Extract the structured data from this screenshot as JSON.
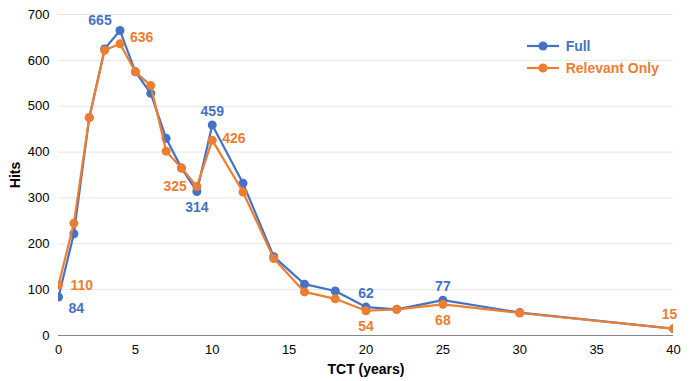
{
  "chart_data": {
    "type": "line",
    "x_label": "TCT (years)",
    "y_label": "Hits",
    "x": [
      0,
      1,
      2,
      3,
      4,
      5,
      6,
      7,
      8,
      9,
      10,
      12,
      14,
      16,
      18,
      20,
      22,
      25,
      30,
      40
    ],
    "series": [
      {
        "name": "Full",
        "color": "#4472c4",
        "marker": "circle",
        "values": [
          84,
          222,
          475,
          625,
          665,
          575,
          528,
          430,
          365,
          314,
          459,
          332,
          172,
          112,
          97,
          62,
          57,
          77,
          50,
          15
        ]
      },
      {
        "name": "Relevant Only",
        "color": "#ed7d31",
        "marker": "circle",
        "values": [
          110,
          245,
          475,
          622,
          636,
          575,
          545,
          402,
          365,
          325,
          426,
          313,
          168,
          95,
          80,
          54,
          57,
          68,
          49,
          15
        ]
      }
    ],
    "annotations": [
      {
        "series": "Full",
        "x": 4,
        "label": "665"
      },
      {
        "series": "Full",
        "x": 10,
        "label": "459"
      },
      {
        "series": "Full",
        "x": 9,
        "label": "314"
      },
      {
        "series": "Full",
        "x": 0,
        "label": "84"
      },
      {
        "series": "Full",
        "x": 20,
        "label": "62"
      },
      {
        "series": "Full",
        "x": 25,
        "label": "77"
      },
      {
        "series": "Relevant Only",
        "x": 4,
        "label": "636"
      },
      {
        "series": "Relevant Only",
        "x": 10,
        "label": "426"
      },
      {
        "series": "Relevant Only",
        "x": 9,
        "label": "325"
      },
      {
        "series": "Relevant Only",
        "x": 0,
        "label": "110"
      },
      {
        "series": "Relevant Only",
        "x": 20,
        "label": "54"
      },
      {
        "series": "Relevant Only",
        "x": 25,
        "label": "68"
      },
      {
        "series": "Relevant Only",
        "x": 40,
        "label": "15"
      }
    ],
    "xlim": [
      0,
      40
    ],
    "xticks": [
      0,
      5,
      10,
      15,
      20,
      25,
      30,
      35,
      40
    ],
    "ylim": [
      0,
      700
    ],
    "yticks": [
      0,
      100,
      200,
      300,
      400,
      500,
      600,
      700
    ],
    "grid": true,
    "legend": "upper right"
  }
}
